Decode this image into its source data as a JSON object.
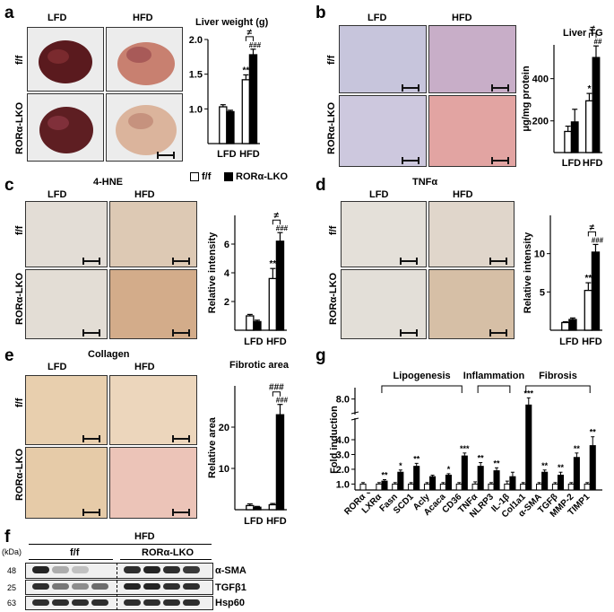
{
  "panels": {
    "a": {
      "letter": "a",
      "col1": "LFD",
      "col2": "HFD",
      "row1": "f/f",
      "row2": "RORα-LKO"
    },
    "b": {
      "letter": "b",
      "col1": "LFD",
      "col2": "HFD",
      "row1": "f/f",
      "row2": "RORα-LKO"
    },
    "c": {
      "letter": "c",
      "title": "4-HNE",
      "col1": "LFD",
      "col2": "HFD",
      "row1": "f/f",
      "row2": "RORα-LKO"
    },
    "d": {
      "letter": "d",
      "title": "TNFα",
      "col1": "LFD",
      "col2": "HFD",
      "row1": "f/f",
      "row2": "RORα-LKO"
    },
    "e": {
      "letter": "e",
      "title": "Collagen",
      "col1": "LFD",
      "col2": "HFD",
      "row1": "f/f",
      "row2": "RORα-LKO"
    },
    "f": {
      "letter": "f",
      "title": "HFD",
      "kda": "(kDa)",
      "group1": "f/f",
      "group2": "RORα-LKO",
      "mw": [
        "48",
        "25",
        "63"
      ],
      "proteins": [
        "α-SMA",
        "TGFβ1",
        "Hsp60"
      ]
    },
    "g": {
      "letter": "g"
    }
  },
  "legend": {
    "open": "f/f",
    "filled": "RORα-LKO"
  },
  "chart_data": [
    {
      "id": "a",
      "type": "bar",
      "title": "Liver weight (g)",
      "categories": [
        "LFD",
        "HFD"
      ],
      "ylim": [
        0.5,
        2.0
      ],
      "yticks": [
        1.0,
        1.5,
        2.0
      ],
      "ytick_labels": [
        "1.0",
        "1.5",
        "2.0"
      ],
      "series": [
        {
          "name": "f/f",
          "values": [
            1.03,
            1.42
          ],
          "errors": [
            0.03,
            0.07
          ]
        },
        {
          "name": "RORα-LKO",
          "values": [
            0.96,
            1.78
          ],
          "errors": [
            0.02,
            0.08
          ]
        }
      ],
      "stars": [
        "",
        "**"
      ],
      "hashes": [
        "",
        "###"
      ],
      "neq": "≠"
    },
    {
      "id": "b",
      "type": "bar",
      "title": "Liver TG",
      "ylabel": "μg/mg protein",
      "categories": [
        "LFD",
        "HFD"
      ],
      "ylim": [
        50,
        560
      ],
      "yticks": [
        200,
        400
      ],
      "ytick_labels": [
        "200",
        "400"
      ],
      "series": [
        {
          "name": "f/f",
          "values": [
            150,
            295
          ],
          "errors": [
            25,
            35
          ]
        },
        {
          "name": "RORα-LKO",
          "values": [
            195,
            500
          ],
          "errors": [
            60,
            55
          ]
        }
      ],
      "stars": [
        "",
        "*"
      ],
      "hashes": [
        "",
        "##"
      ],
      "neq": "≠"
    },
    {
      "id": "c",
      "type": "bar",
      "ylabel": "Relative intensity",
      "categories": [
        "LFD",
        "HFD"
      ],
      "ylim": [
        0,
        8
      ],
      "yticks": [
        2,
        4,
        6
      ],
      "ytick_labels": [
        "2",
        "4",
        "6"
      ],
      "series": [
        {
          "name": "f/f",
          "values": [
            1.0,
            3.6
          ],
          "errors": [
            0.1,
            0.7
          ]
        },
        {
          "name": "RORα-LKO",
          "values": [
            0.6,
            6.2
          ],
          "errors": [
            0.1,
            0.6
          ]
        }
      ],
      "stars": [
        "",
        "**"
      ],
      "hashes": [
        "",
        "###"
      ],
      "neq": "≠"
    },
    {
      "id": "d",
      "type": "bar",
      "ylabel": "Relative intensity",
      "categories": [
        "LFD",
        "HFD"
      ],
      "ylim": [
        0,
        15
      ],
      "yticks": [
        5,
        10
      ],
      "ytick_labels": [
        "5",
        "10"
      ],
      "series": [
        {
          "name": "f/f",
          "values": [
            1.0,
            5.2
          ],
          "errors": [
            0.1,
            1.0
          ]
        },
        {
          "name": "RORα-LKO",
          "values": [
            1.4,
            10.2
          ],
          "errors": [
            0.2,
            1.0
          ]
        }
      ],
      "stars": [
        "",
        "**"
      ],
      "hashes": [
        "",
        "###"
      ],
      "neq": "≠"
    },
    {
      "id": "e",
      "type": "bar",
      "title": "Fibrotic area",
      "ylabel": "Relative area",
      "categories": [
        "LFD",
        "HFD"
      ],
      "ylim": [
        0,
        30
      ],
      "yticks": [
        10,
        20
      ],
      "ytick_labels": [
        "10",
        "20"
      ],
      "series": [
        {
          "name": "f/f",
          "values": [
            1.0,
            1.2
          ],
          "errors": [
            0.4,
            0.3
          ]
        },
        {
          "name": "RORα-LKO",
          "values": [
            0.6,
            23
          ],
          "errors": [
            0.2,
            2.5
          ]
        }
      ],
      "stars": [
        "",
        ""
      ],
      "hashes": [
        "",
        "###"
      ],
      "neq": "###"
    },
    {
      "id": "g",
      "type": "bar",
      "ylabel": "Fold induction",
      "categories": [
        "RORα",
        "LXRα",
        "Fasn",
        "SCD1",
        "Acly",
        "Acaca",
        "CD36",
        "TNFα",
        "NLRP3",
        "IL-1β",
        "Col1a1",
        "α-SMA",
        "TGFβ",
        "MMP-2",
        "TIMP1"
      ],
      "yticks": [
        1.0,
        2.0,
        3.0,
        4.0,
        8.0
      ],
      "ytick_labels": [
        "1.0",
        "2.0",
        "3.0",
        "4.0",
        "8.0"
      ],
      "series": [
        {
          "name": "f/f",
          "values": [
            1,
            1,
            1,
            1,
            1,
            1,
            1,
            1,
            1,
            1,
            1,
            1,
            1,
            1,
            1
          ],
          "errors": [
            0.1,
            0.1,
            0.1,
            0.1,
            0.1,
            0.1,
            0.1,
            0.15,
            0.1,
            0.2,
            0.1,
            0.1,
            0.1,
            0.1,
            0.1
          ]
        },
        {
          "name": "RORα-LKO",
          "values": [
            0.35,
            1.2,
            1.8,
            2.2,
            1.5,
            1.6,
            2.9,
            2.2,
            1.9,
            1.5,
            7.5,
            1.8,
            1.6,
            2.8,
            3.6
          ],
          "errors": [
            0.05,
            0.1,
            0.15,
            0.2,
            0.1,
            0.1,
            0.2,
            0.25,
            0.2,
            0.3,
            0.6,
            0.15,
            0.2,
            0.3,
            0.6
          ]
        }
      ],
      "stars": [
        "",
        "**",
        "*",
        "**",
        "",
        "*",
        "***",
        "**",
        "**",
        "",
        "***",
        "**",
        "**",
        "**",
        "**"
      ],
      "groups": [
        {
          "label": "Lipogenesis"
        },
        {
          "label": "Inflammation"
        },
        {
          "label": "Fibrosis"
        }
      ]
    }
  ],
  "colors": {
    "ink": "#000000",
    "white": "#ffffff"
  }
}
